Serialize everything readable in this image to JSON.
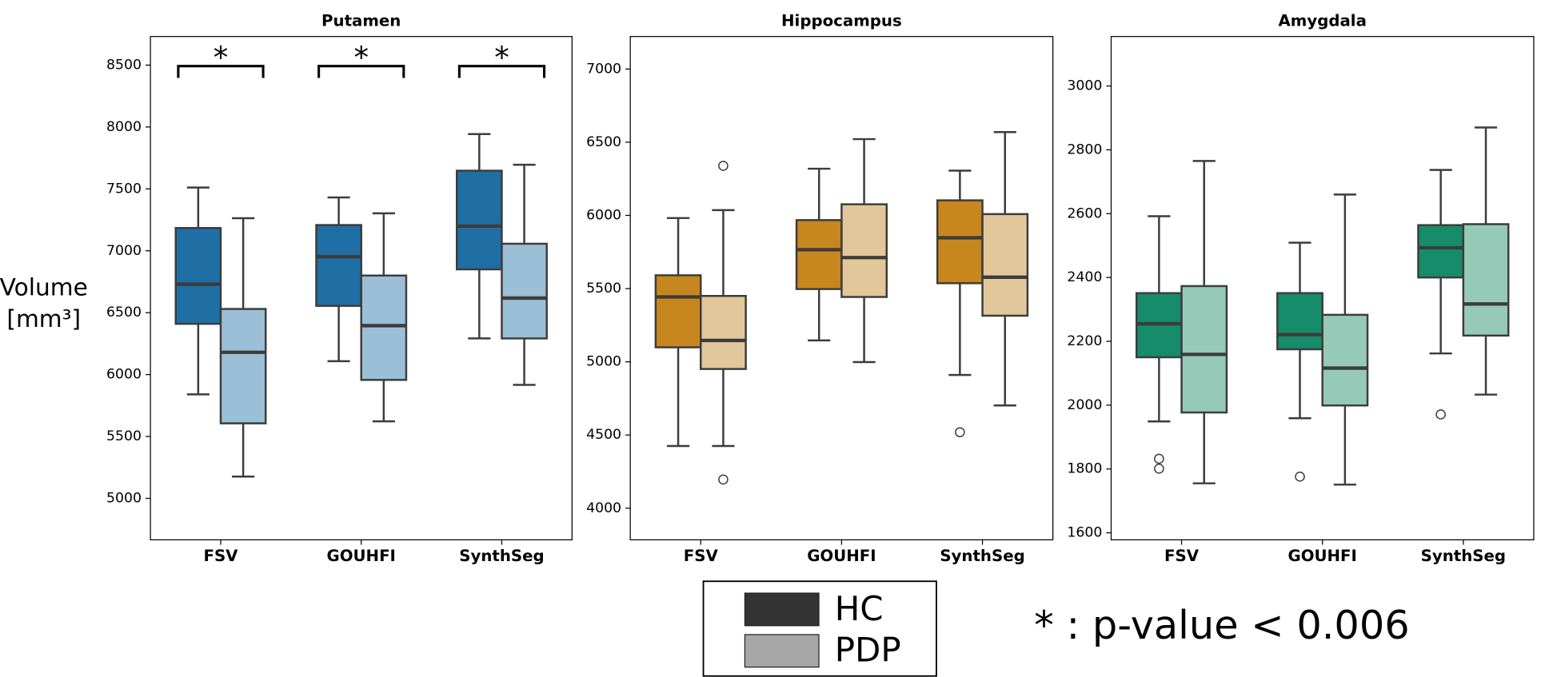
{
  "chart_data": [
    {
      "type": "box",
      "title": "Putamen",
      "ylabel": [
        "Volume",
        "[mm³]"
      ],
      "categories": [
        "FSV",
        "GOUHFI",
        "SynthSeg"
      ],
      "ylim": [
        4665,
        8731
      ],
      "yticks": [
        5000,
        5500,
        6000,
        6500,
        7000,
        7500,
        8000,
        8500
      ],
      "significance": [
        "*",
        "*",
        "*"
      ],
      "series": [
        {
          "color": "#1f6fa5",
          "whisker_low": [
            5840,
            6108,
            6292
          ],
          "q1": [
            6410,
            6555,
            6850
          ],
          "median": [
            6730,
            6953,
            7200
          ],
          "q3": [
            7184,
            7208,
            7647
          ],
          "whisker_high": [
            7511,
            7431,
            7943
          ],
          "outliers": [
            [],
            [],
            []
          ]
        },
        {
          "color": "#9bbfd6",
          "whisker_low": [
            5176,
            5622,
            5917
          ],
          "q1": [
            5606,
            5957,
            6292
          ],
          "median": [
            6180,
            6395,
            6618
          ],
          "q3": [
            6530,
            6800,
            7057
          ],
          "whisker_high": [
            7263,
            7303,
            7695
          ],
          "outliers": [
            [],
            [],
            []
          ]
        }
      ]
    },
    {
      "type": "box",
      "title": "Hippocampus",
      "categories": [
        "FSV",
        "GOUHFI",
        "SynthSeg"
      ],
      "ylim": [
        3784,
        7222
      ],
      "yticks": [
        4000,
        4500,
        5000,
        5500,
        6000,
        6500,
        7000
      ],
      "series": [
        {
          "color": "#c8861f",
          "whisker_low": [
            4425,
            5146,
            4910
          ],
          "q1": [
            5099,
            5497,
            5537
          ],
          "median": [
            5443,
            5766,
            5847
          ],
          "q3": [
            5591,
            5968,
            6103
          ],
          "whisker_high": [
            5982,
            6319,
            6306
          ],
          "outliers": [
            [],
            [],
            [
              4519
            ]
          ]
        },
        {
          "color": "#e1c79a",
          "whisker_low": [
            4425,
            4998,
            4702
          ],
          "q1": [
            4951,
            5443,
            5315
          ],
          "median": [
            5146,
            5712,
            5578
          ],
          "q3": [
            5450,
            6076,
            6009
          ],
          "whisker_high": [
            6036,
            6521,
            6569
          ],
          "outliers": [
            [
              6339,
              4196
            ],
            [],
            []
          ]
        }
      ]
    },
    {
      "type": "box",
      "title": "Amygdala",
      "categories": [
        "FSV",
        "GOUHFI",
        "SynthSeg"
      ],
      "ylim": [
        1578,
        3155
      ],
      "yticks": [
        1600,
        1800,
        2000,
        2200,
        2400,
        2600,
        2800,
        3000
      ],
      "series": [
        {
          "color": "#168c6a",
          "whisker_low": [
            1949,
            1959,
            2162
          ],
          "q1": [
            2150,
            2175,
            2400
          ],
          "median": [
            2255,
            2221,
            2493
          ],
          "q3": [
            2351,
            2351,
            2564
          ],
          "whisker_high": [
            2592,
            2509,
            2737
          ],
          "outliers": [
            [
              1832,
              1801
            ],
            [
              1776
            ],
            [
              1971
            ]
          ]
        },
        {
          "color": "#96cab8",
          "whisker_low": [
            1755,
            1751,
            2033
          ],
          "q1": [
            1977,
            1999,
            2218
          ],
          "median": [
            2159,
            2116,
            2317
          ],
          "q3": [
            2373,
            2283,
            2567
          ],
          "whisker_high": [
            2765,
            2660,
            2870
          ],
          "outliers": [
            [],
            [],
            []
          ]
        }
      ]
    }
  ],
  "legend": {
    "entries": [
      {
        "name": "HC",
        "color": "#333333"
      },
      {
        "name": "PDP",
        "color": "#a6a6a6"
      }
    ]
  },
  "note": "* : p-value < 0.006"
}
